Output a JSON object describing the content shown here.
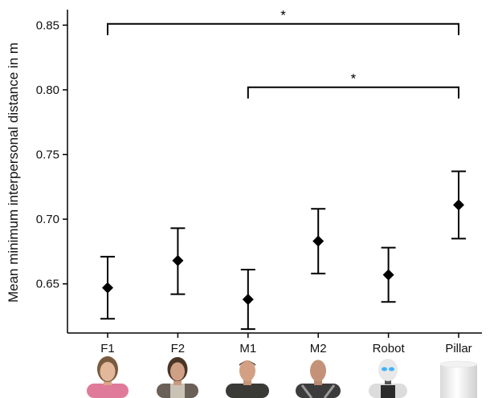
{
  "chart_data": {
    "type": "scatter",
    "title": "",
    "xlabel": "",
    "ylabel": "Mean minimum interpersonal distance in m",
    "categories": [
      "F1",
      "F2",
      "M1",
      "M2",
      "Robot",
      "Pillar"
    ],
    "series": [
      {
        "values": [
          0.647,
          0.668,
          0.638,
          0.683,
          0.657,
          0.711
        ],
        "lower": [
          0.623,
          0.642,
          0.615,
          0.658,
          0.636,
          0.685
        ],
        "upper": [
          0.671,
          0.693,
          0.661,
          0.708,
          0.678,
          0.737
        ]
      }
    ],
    "ylim": [
      0.612,
      0.862
    ],
    "yticks": [
      0.65,
      0.7,
      0.75,
      0.8,
      0.85
    ],
    "ytick_labels": [
      "0.65",
      "0.70",
      "0.75",
      "0.80",
      "0.85"
    ],
    "grid": false,
    "legend": "none",
    "marker": "diamond",
    "color": "#000000",
    "annotations": [
      {
        "from": "F1",
        "to": "Pillar",
        "y": 0.851,
        "label": "*"
      },
      {
        "from": "M1",
        "to": "Pillar",
        "y": 0.802,
        "label": "*"
      }
    ],
    "category_images": [
      "female-avatar-1",
      "female-avatar-2",
      "male-avatar-1",
      "male-avatar-2",
      "robot-avatar",
      "pillar-cylinder"
    ]
  }
}
